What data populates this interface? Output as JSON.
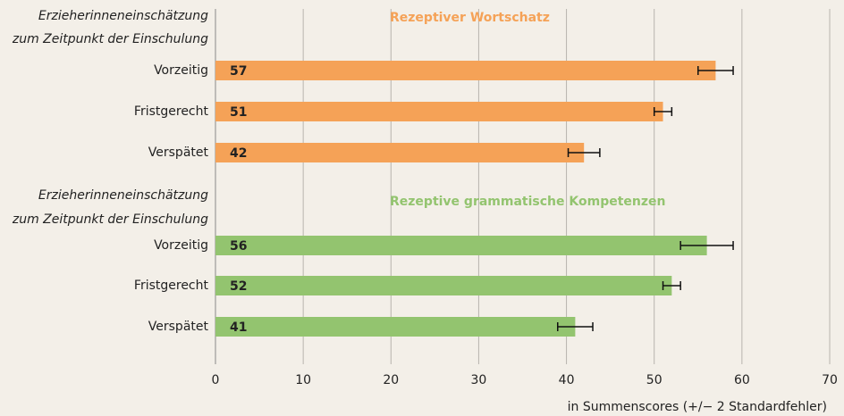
{
  "chart_data": [
    {
      "type": "bar",
      "title": "Rezeptiver Wortschatz",
      "axis_label_lines": [
        "Erzieherinneneinschätzung",
        "zum Zeitpunkt der Einschulung"
      ],
      "categories": [
        "Vorzeitig",
        "Fristgerecht",
        "Verspätet"
      ],
      "values": [
        57,
        51,
        42
      ],
      "errors": [
        2,
        1,
        1.8
      ],
      "color": "#f5a257",
      "xlim": [
        0,
        70
      ]
    },
    {
      "type": "bar",
      "title": "Rezeptive grammatische Kompetenzen",
      "axis_label_lines": [
        "Erzieherinneneinschätzung",
        "zum Zeitpunkt der Einschulung"
      ],
      "categories": [
        "Vorzeitig",
        "Fristgerecht",
        "Verspätet"
      ],
      "values": [
        56,
        52,
        41
      ],
      "errors": [
        3,
        1,
        2
      ],
      "color": "#93c46f",
      "xlim": [
        0,
        70
      ],
      "xticks": [
        0,
        10,
        20,
        30,
        40,
        50,
        60,
        70
      ],
      "xlabel": "in Summenscores (+/− 2 Standardfehler)",
      "grid": true
    }
  ]
}
